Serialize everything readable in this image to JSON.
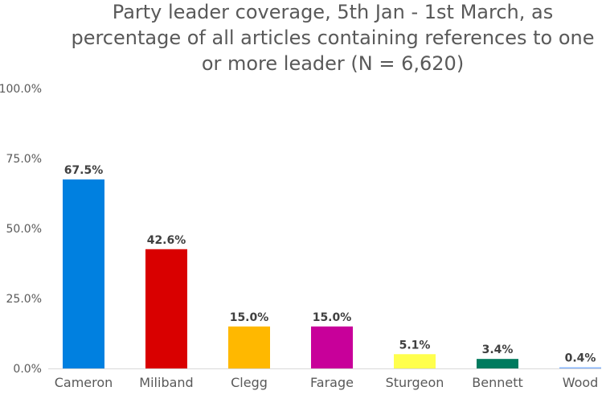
{
  "chart_data": {
    "type": "bar",
    "title_lines": [
      "Party leader coverage, 5th Jan - 1st March, as",
      "percentage of all articles containing references to one",
      "or more leader (N = 6,620)"
    ],
    "categories": [
      "Cameron",
      "Miliband",
      "Clegg",
      "Farage",
      "Sturgeon",
      "Bennett",
      "Wood"
    ],
    "values": [
      67.5,
      42.6,
      15.0,
      15.0,
      5.1,
      3.4,
      0.4
    ],
    "data_labels": [
      "67.5%",
      "42.6%",
      "15.0%",
      "15.0%",
      "5.1%",
      "3.4%",
      "0.4%"
    ],
    "colors": [
      "#0080e0",
      "#d90000",
      "#ffb800",
      "#c8009a",
      "#ffff4d",
      "#007a5e",
      "#7fb0ff"
    ],
    "ylim": [
      0,
      100
    ],
    "yticks": [
      0,
      25,
      50,
      75,
      100
    ],
    "ytick_labels": [
      "0.0%",
      "25.0%",
      "50.0%",
      "75.0%",
      "100.0%"
    ],
    "grid": false,
    "legend": "none"
  }
}
